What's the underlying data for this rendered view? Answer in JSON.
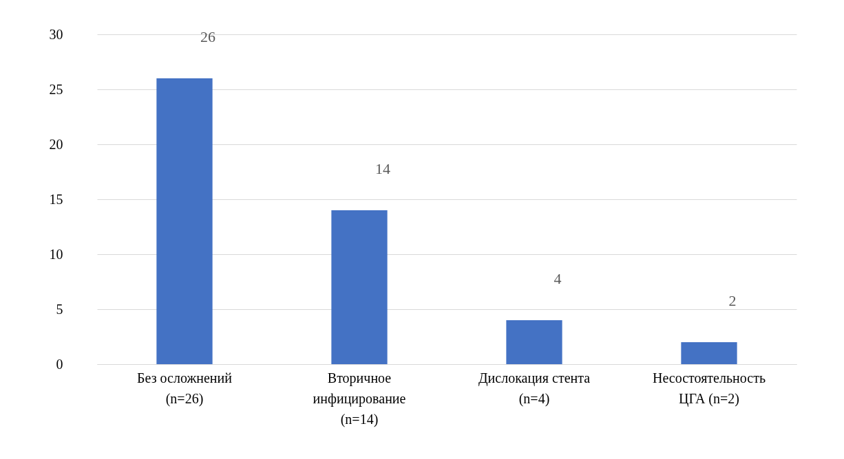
{
  "chart_data": {
    "type": "bar",
    "categories": [
      "Без осложнений\n(n=26)",
      "Вторичное\nинфицирование\n(n=14)",
      "Дислокация стента\n(n=4)",
      "Несостоятельность\nЦГА (n=2)"
    ],
    "values": [
      26,
      14,
      4,
      2
    ],
    "color": "#4472c4",
    "ylim": [
      0,
      30
    ],
    "yticks": [
      0,
      5,
      10,
      15,
      20,
      25,
      30
    ],
    "grid": "y",
    "data_labels": true
  }
}
